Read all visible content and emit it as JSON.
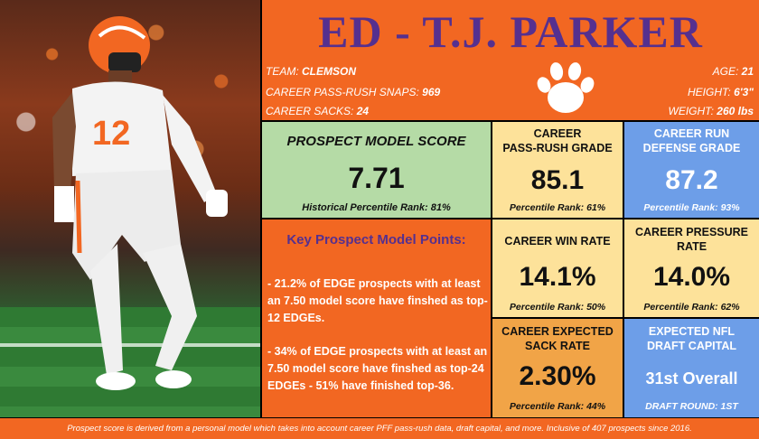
{
  "header": {
    "title": "ED - T.J. PARKER",
    "team_label": "TEAM:",
    "team_value": "CLEMSON",
    "snaps_label": "CAREER PASS-RUSH SNAPS:",
    "snaps_value": "969",
    "sacks_label": "CAREER SACKS:",
    "sacks_value": "24",
    "age_label": "AGE:",
    "age_value": "21",
    "height_label": "HEIGHT:",
    "height_value": "6'3\"",
    "weight_label": "WEIGHT:",
    "weight_value": "260 lbs"
  },
  "model_score": {
    "label": "PROSPECT MODEL SCORE",
    "value": "7.71",
    "percentile_label": "Historical Percentile Rank:",
    "percentile_value": "81%"
  },
  "pass_rush": {
    "label_1": "CAREER",
    "label_2": "PASS-RUSH GRADE",
    "value": "85.1",
    "percentile": "Percentile Rank: 61%"
  },
  "run_defense": {
    "label_1": "CAREER RUN",
    "label_2": "DEFENSE GRADE",
    "value": "87.2",
    "percentile": "Percentile Rank: 93%"
  },
  "key_points": {
    "title": "Key Prospect Model Points:",
    "point_1": "- 21.2% of EDGE prospects with at least an 7.50 model score have finshed as top-12 EDGEs.",
    "point_2": "- 34% of EDGE prospects with at least an 7.50 model score have finshed as top-24 EDGEs - 51% have finished top-36."
  },
  "win_rate": {
    "label": "CAREER WIN RATE",
    "value": "14.1%",
    "percentile": "Percentile Rank: 50%"
  },
  "pressure_rate": {
    "label_1": "CAREER PRESSURE",
    "label_2": "RATE",
    "value": "14.0%",
    "percentile": "Percentile Rank: 62%"
  },
  "sack_rate": {
    "label_1": "CAREER EXPECTED",
    "label_2": "SACK RATE",
    "value": "2.30%",
    "percentile": "Percentile Rank: 44%"
  },
  "draft_capital": {
    "label_1": "EXPECTED NFL",
    "label_2": "DRAFT CAPITAL",
    "value": "31st Overall",
    "round": "DRAFT ROUND: 1ST"
  },
  "footer": {
    "text": "Prospect score is derived from a personal model which takes into account career PFF pass-rush data, draft capital, and more. Inclusive of 407 prospects since 2016."
  },
  "player_photo": {
    "jersey_number": "12"
  },
  "colors": {
    "orange": "#f26722",
    "purple": "#55308f",
    "green": "#b5dba6",
    "yellow": "#fde29a",
    "blue": "#6d9ee8"
  },
  "icons": {
    "logo": "tiger-paw-icon"
  }
}
